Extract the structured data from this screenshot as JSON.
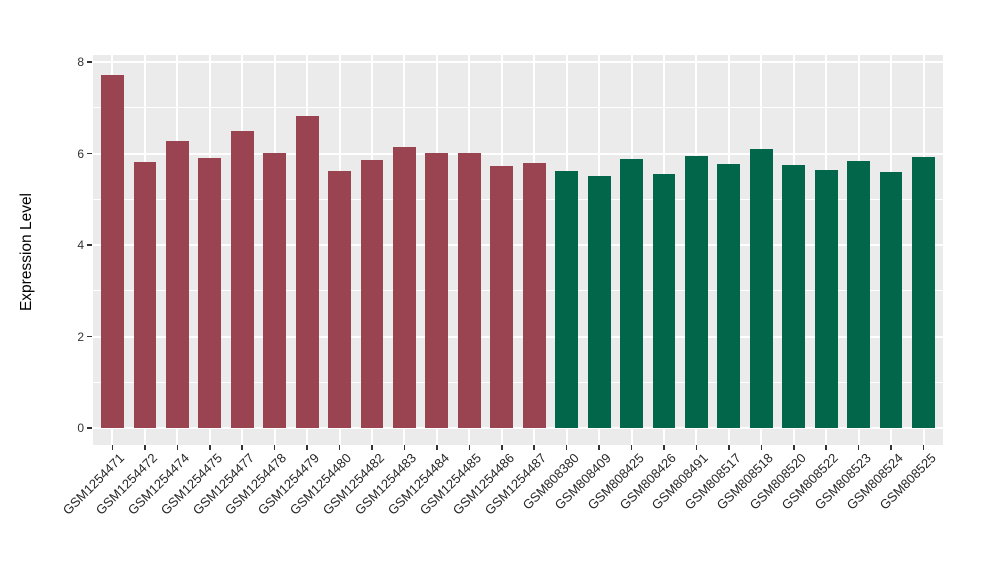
{
  "chart_data": {
    "type": "bar",
    "title": "",
    "xlabel": "",
    "ylabel": "Expression Level",
    "ylim": [
      0,
      8
    ],
    "yticks": [
      0,
      2,
      4,
      6,
      8
    ],
    "yticks_minor": [
      1,
      3,
      5,
      7
    ],
    "grid": true,
    "legend_position": "none",
    "panel_bg": "#EBEBEB",
    "grid_color": "#FFFFFF",
    "tick_color": "#333333",
    "categories": [
      "GSM1254471",
      "GSM1254472",
      "GSM1254474",
      "GSM1254475",
      "GSM1254477",
      "GSM1254478",
      "GSM1254479",
      "GSM1254480",
      "GSM1254482",
      "GSM1254483",
      "GSM1254484",
      "GSM1254485",
      "GSM1254486",
      "GSM1254487",
      "GSM808380",
      "GSM808409",
      "GSM808425",
      "GSM808426",
      "GSM808491",
      "GSM808517",
      "GSM808518",
      "GSM808520",
      "GSM808522",
      "GSM808523",
      "GSM808524",
      "GSM808525"
    ],
    "values": [
      7.72,
      5.81,
      6.27,
      5.9,
      6.49,
      6.01,
      6.81,
      5.62,
      5.86,
      6.15,
      6.01,
      6.02,
      5.73,
      5.79,
      5.62,
      5.51,
      5.88,
      5.56,
      5.95,
      5.76,
      6.09,
      5.74,
      5.64,
      5.84,
      5.6,
      5.92
    ],
    "bar_groups": [
      "group1",
      "group1",
      "group1",
      "group1",
      "group1",
      "group1",
      "group1",
      "group1",
      "group1",
      "group1",
      "group1",
      "group1",
      "group1",
      "group1",
      "group2",
      "group2",
      "group2",
      "group2",
      "group2",
      "group2",
      "group2",
      "group2",
      "group2",
      "group2",
      "group2",
      "group2"
    ],
    "group_colors": {
      "group1": "#9A4351",
      "group2": "#02664A"
    }
  }
}
